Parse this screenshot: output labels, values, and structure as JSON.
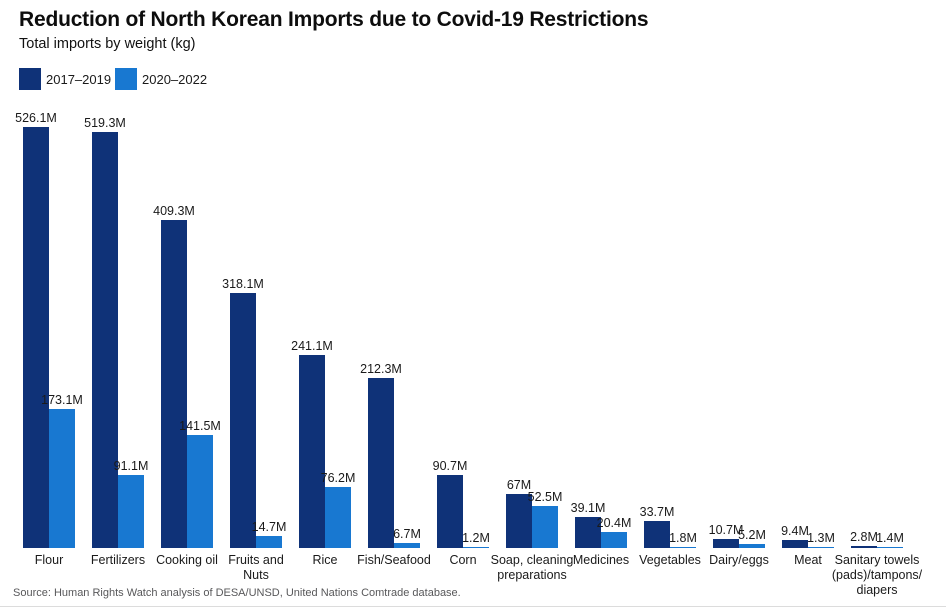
{
  "title": "Reduction of North Korean Imports due to Covid-19 Restrictions",
  "subtitle": "Total imports by weight (kg)",
  "legend": {
    "items": [
      {
        "label": "2017–2019",
        "color": "#0f3278"
      },
      {
        "label": "2020–2022",
        "color": "#1878d1"
      }
    ]
  },
  "source": "Source: Human Rights Watch analysis of DESA/UNSD, United Nations Comtrade database.",
  "colors": {
    "series_2017_2019": "#0f3278",
    "series_2020_2022": "#1878d1",
    "text": "#1a1a1a",
    "source_text": "#58585a",
    "rule": "#dcdcdc"
  },
  "chart_data": {
    "type": "bar",
    "title": "Reduction of North Korean Imports due to Covid-19 Restrictions",
    "subtitle": "Total imports by weight (kg)",
    "unit": "kg (millions)",
    "xlabel": "",
    "ylabel": "Total imports by weight (kg)",
    "ylim": [
      0,
      560
    ],
    "grid": false,
    "legend_position": "top-left",
    "value_labels_shown": true,
    "categories": [
      "Flour",
      "Fertilizers",
      "Cooking oil",
      "Fruits and\nNuts",
      "Rice",
      "Fish/Seafood",
      "Corn",
      "Soap, cleaning\npreparations",
      "Medicines",
      "Vegetables",
      "Dairy/eggs",
      "Meat",
      "Sanitary towels\n(pads)/tampons/\ndiapers"
    ],
    "series": [
      {
        "name": "2017–2019",
        "color": "#0f3278",
        "values": [
          526.1,
          519.3,
          409.3,
          318.1,
          241.1,
          212.3,
          90.7,
          67,
          39.1,
          33.7,
          10.7,
          9.4,
          2.8
        ],
        "labels": [
          "526.1M",
          "519.3M",
          "409.3M",
          "318.1M",
          "241.1M",
          "212.3M",
          "90.7M",
          "67M",
          "39.1M",
          "33.7M",
          "10.7M",
          "9.4M",
          "2.8M"
        ]
      },
      {
        "name": "2020–2022",
        "color": "#1878d1",
        "values": [
          173.1,
          91.1,
          141.5,
          14.7,
          76.2,
          6.7,
          1.2,
          52.5,
          20.4,
          1.8,
          5.2,
          1.3,
          1.4
        ],
        "labels": [
          "173.1M",
          "91.1M",
          "141.5M",
          "14.7M",
          "76.2M",
          "6.7M",
          "1.2M",
          "52.5M",
          "20.4M",
          "1.8M",
          "5.2M",
          "1.3M",
          "1.4M"
        ]
      }
    ]
  }
}
